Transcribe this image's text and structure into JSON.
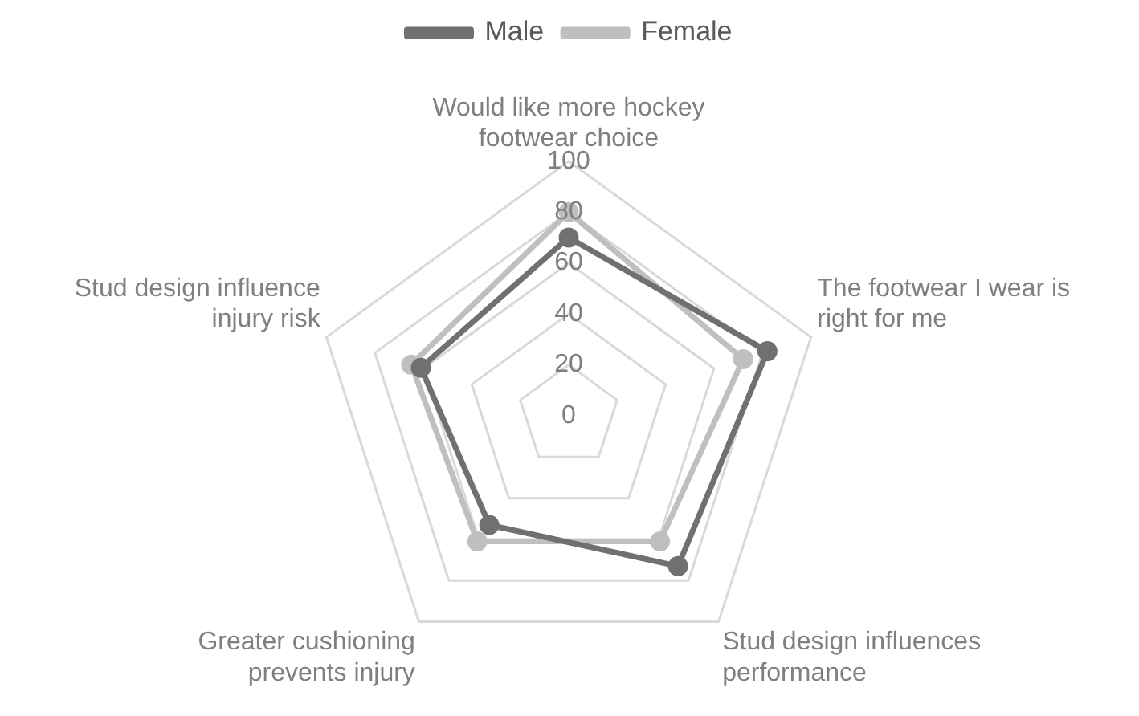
{
  "chart_data": {
    "type": "radar",
    "categories": [
      "Would like more hockey footwear choice",
      "The footwear I wear is right for me",
      "Stud design influences performance",
      "Greater cushioning prevents injury",
      "Stud design influence injury risk"
    ],
    "series": [
      {
        "name": "Male",
        "color": "#707070",
        "values": [
          70,
          82,
          73,
          53,
          61
        ]
      },
      {
        "name": "Female",
        "color": "#bfbfbf",
        "values": [
          80,
          72,
          61,
          61,
          65
        ]
      }
    ],
    "ylim": [
      0,
      100
    ],
    "yticks": [
      0,
      20,
      40,
      60,
      80,
      100
    ],
    "grid": true,
    "legend": "top",
    "marker": "circle"
  }
}
